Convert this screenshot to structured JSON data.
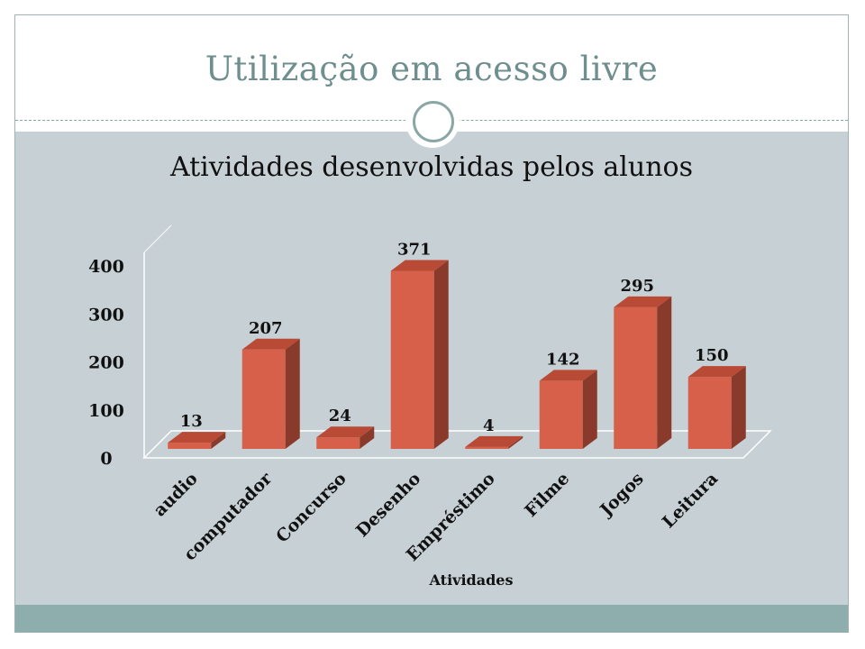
{
  "slide": {
    "title": "Utilização em acesso livre"
  },
  "colors": {
    "title": "#6f8f8e",
    "content_background": "#c7d0d5",
    "footer": "#8eadad",
    "bar_front": "#d6604a",
    "bar_side": "#8a3a2a",
    "bar_top": "#b84a36"
  },
  "chart_data": {
    "type": "bar",
    "title": "Atividades desenvolvidas pelos alunos",
    "xlabel": "Atividades",
    "ylabel": "",
    "categories": [
      "audio",
      "computador",
      "Concurso",
      "Desenho",
      "Empréstimo",
      "Filme",
      "Jogos",
      "Leitura"
    ],
    "values": [
      13,
      207,
      24,
      371,
      4,
      142,
      295,
      150
    ],
    "ylim": [
      0,
      400
    ],
    "yticks": [
      0,
      100,
      200,
      300,
      400
    ],
    "grid": false,
    "legend": "none",
    "style": "3d-column"
  }
}
